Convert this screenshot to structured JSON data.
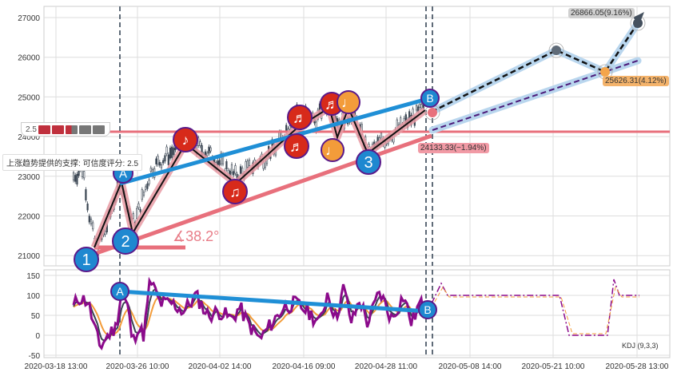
{
  "chart_data": {
    "type": "candlestick-with-wave-analysis",
    "price_axis": {
      "ticks": [
        27000,
        26000,
        25000,
        24000,
        23000,
        22000,
        21000
      ],
      "range": [
        20800,
        27300
      ]
    },
    "indicator_axis": {
      "ticks": [
        150,
        100,
        50,
        0,
        -50
      ],
      "range": [
        -55,
        160
      ]
    },
    "x_ticks": [
      "2020-03-18 13:00",
      "2020-03-26 10:00",
      "2020-04-02 14:00",
      "2020-04-16 09:00",
      "2020-04-28 11:00",
      "2020-05-08 14:00",
      "2020-05-21 10:00",
      "2020-05-28 13:00"
    ],
    "support_level": 24133.33,
    "wave_labels": [
      "1",
      "2",
      "3",
      "A",
      "B"
    ],
    "note_markers": [
      "♪",
      "♫",
      "♬",
      "♬",
      "♬",
      "♩",
      "♩"
    ],
    "projections": [
      {
        "label": "26866.05(9.16%)",
        "value": 26866.05,
        "pct": 9.16,
        "color": "#cccccc"
      },
      {
        "label": "25626.31(4.12%)",
        "value": 25626.31,
        "pct": 4.12,
        "color": "#f4b36b"
      },
      {
        "label": "24133.33(−1.94%)",
        "value": 24133.33,
        "pct": -1.94,
        "color": "#f19aa5"
      }
    ],
    "angle_label": "∡38.2°",
    "indicator_name": "KDJ (9,3,3)",
    "indicator_markers": [
      "A",
      "B"
    ]
  },
  "tooltip": "上涨趋势提供的支撑: 可信度评分: 2.5",
  "score": {
    "value": "2.5",
    "rating": 2.5,
    "max": 5
  },
  "colors": {
    "red_line": "#e8707c",
    "blue_line": "#1f8fd6",
    "marker_blue": "#1e88d0",
    "marker_red": "#d72a1a",
    "marker_orange": "#f39c3a",
    "marker_border": "#5a1a8a"
  }
}
